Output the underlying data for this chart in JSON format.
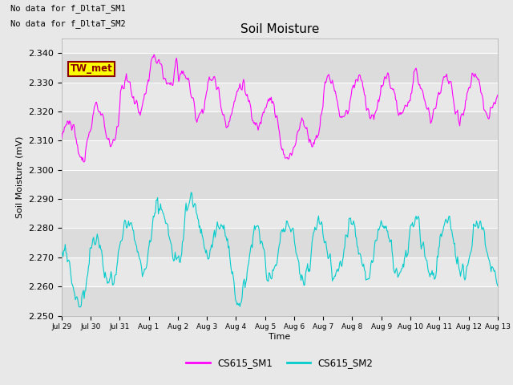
{
  "title": "Soil Moisture",
  "ylabel": "Soil Moisture (mV)",
  "xlabel": "Time",
  "ylim": [
    2.25,
    2.345
  ],
  "yticks": [
    2.25,
    2.26,
    2.27,
    2.28,
    2.29,
    2.3,
    2.31,
    2.32,
    2.33,
    2.34
  ],
  "sm1_color": "#FF00FF",
  "sm2_color": "#00CCCC",
  "fig_bg_color": "#E8E8E8",
  "plot_bg_color": "#DCDCDC",
  "stripe_color": "#C8C8C8",
  "annotations": [
    "No data for f_DltaT_SM1",
    "No data for f_DltaT_SM2"
  ],
  "legend_label1": "CS615_SM1",
  "legend_label2": "CS615_SM2",
  "tw_met_label": "TW_met",
  "xtick_labels": [
    "Jul 29",
    "Jul 30",
    "Jul 31",
    "Aug 1",
    "Aug 2",
    "Aug 3",
    "Aug 4",
    "Aug 5",
    "Aug 6",
    "Aug 7",
    "Aug 8",
    "Aug 9",
    "Aug 10",
    "Aug 11",
    "Aug 12",
    "Aug 13"
  ],
  "n_points": 600
}
